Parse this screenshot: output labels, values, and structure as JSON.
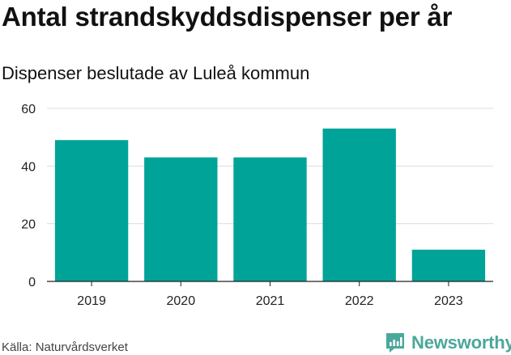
{
  "header": {
    "title": "Antal strandskyddsdispenser per år",
    "subtitle": "Dispenser beslutade av Luleå kommun"
  },
  "footer": {
    "source": "Källa: Naturvårdsverket",
    "brand": "Newsworthy"
  },
  "colors": {
    "bar": "#00a398",
    "grid": "#dddddd",
    "axis": "#222222",
    "brand": "#4aa89b"
  },
  "icons": {
    "brand_logo": "newsworthy-logo-icon"
  },
  "chart_data": {
    "type": "bar",
    "title": "Antal strandskyddsdispenser per år",
    "subtitle": "Dispenser beslutade av Luleå kommun",
    "xlabel": "",
    "ylabel": "",
    "categories": [
      "2019",
      "2020",
      "2021",
      "2022",
      "2023"
    ],
    "values": [
      49,
      43,
      43,
      53,
      11
    ],
    "ylim": [
      0,
      60
    ],
    "yticks": [
      0,
      20,
      40,
      60
    ],
    "grid": true,
    "legend": "none"
  }
}
